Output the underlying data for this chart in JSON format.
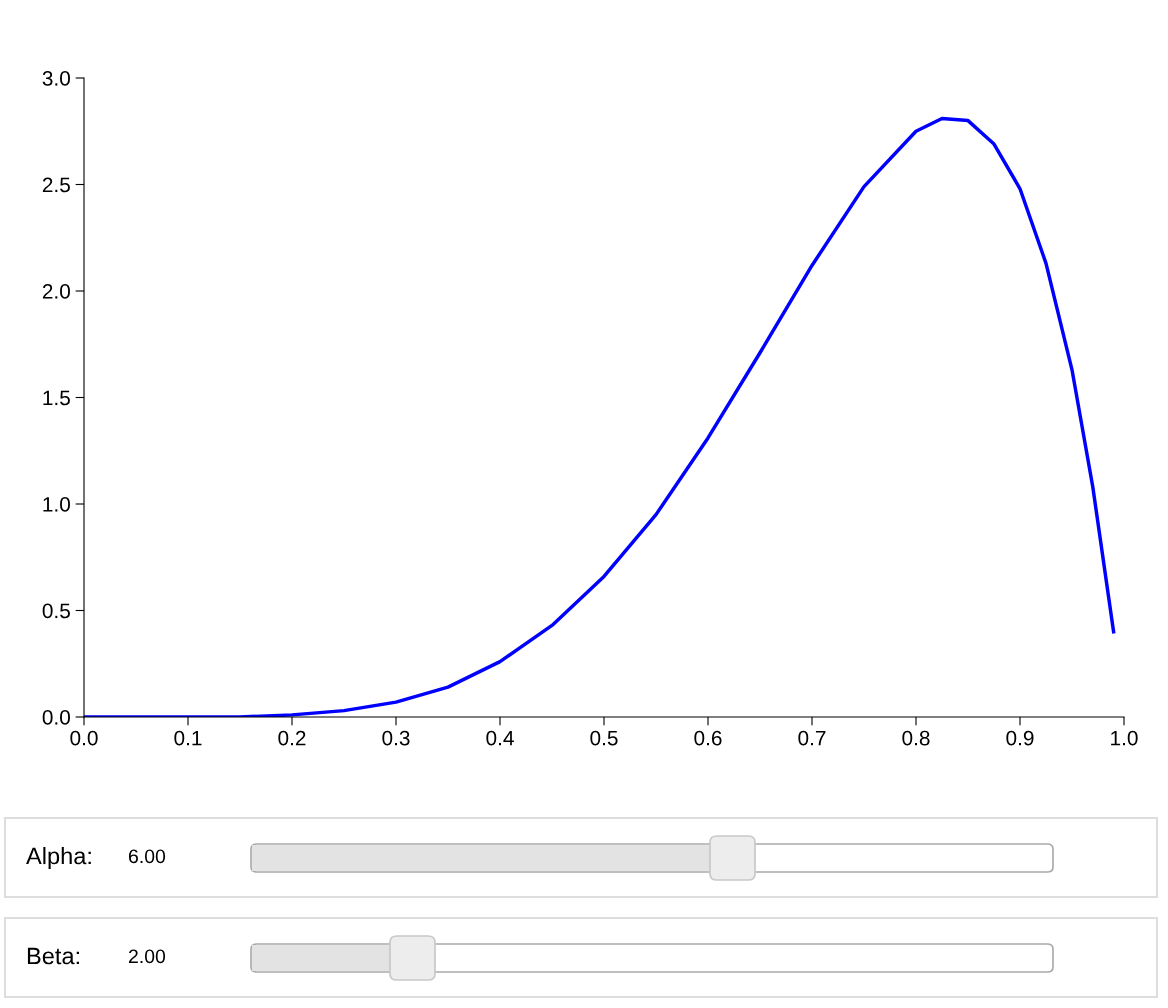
{
  "chart_data": {
    "type": "line",
    "x": [
      0,
      0.05,
      0.1,
      0.15,
      0.2,
      0.25,
      0.3,
      0.35,
      0.4,
      0.45,
      0.5,
      0.55,
      0.6,
      0.65,
      0.7,
      0.75,
      0.8,
      0.825,
      0.85,
      0.875,
      0.9,
      0.925,
      0.95,
      0.97,
      0.99
    ],
    "series": [
      {
        "color": "#0000ff",
        "values": [
          0,
          0,
          0,
          0,
          0.01,
          0.03,
          0.07,
          0.14,
          0.26,
          0.43,
          0.66,
          0.95,
          1.31,
          1.71,
          2.12,
          2.49,
          2.75,
          2.81,
          2.8,
          2.69,
          2.48,
          2.13,
          1.63,
          1.08,
          0.4
        ]
      }
    ],
    "xlim": [
      0,
      1
    ],
    "xticks": [
      {
        "value": 0,
        "label": "0.0"
      },
      0.1,
      0.2,
      0.3,
      0.4,
      0.5,
      0.6,
      0.7,
      0.8,
      0.9,
      {
        "value": 1,
        "label": "1.0"
      }
    ],
    "ylim": [
      0,
      3
    ],
    "yticks": [
      {
        "value": 0,
        "label": "0.0"
      },
      0.5,
      {
        "value": 1,
        "label": "1.0"
      },
      1.5,
      {
        "value": 2,
        "label": "2.0"
      },
      2.5,
      {
        "value": 3,
        "label": "3.0"
      }
    ],
    "grid": false,
    "marker": "none",
    "line_style": "solid",
    "annotations": [
      "Alpha:",
      "6.00",
      "Beta:",
      "2.00"
    ]
  }
}
